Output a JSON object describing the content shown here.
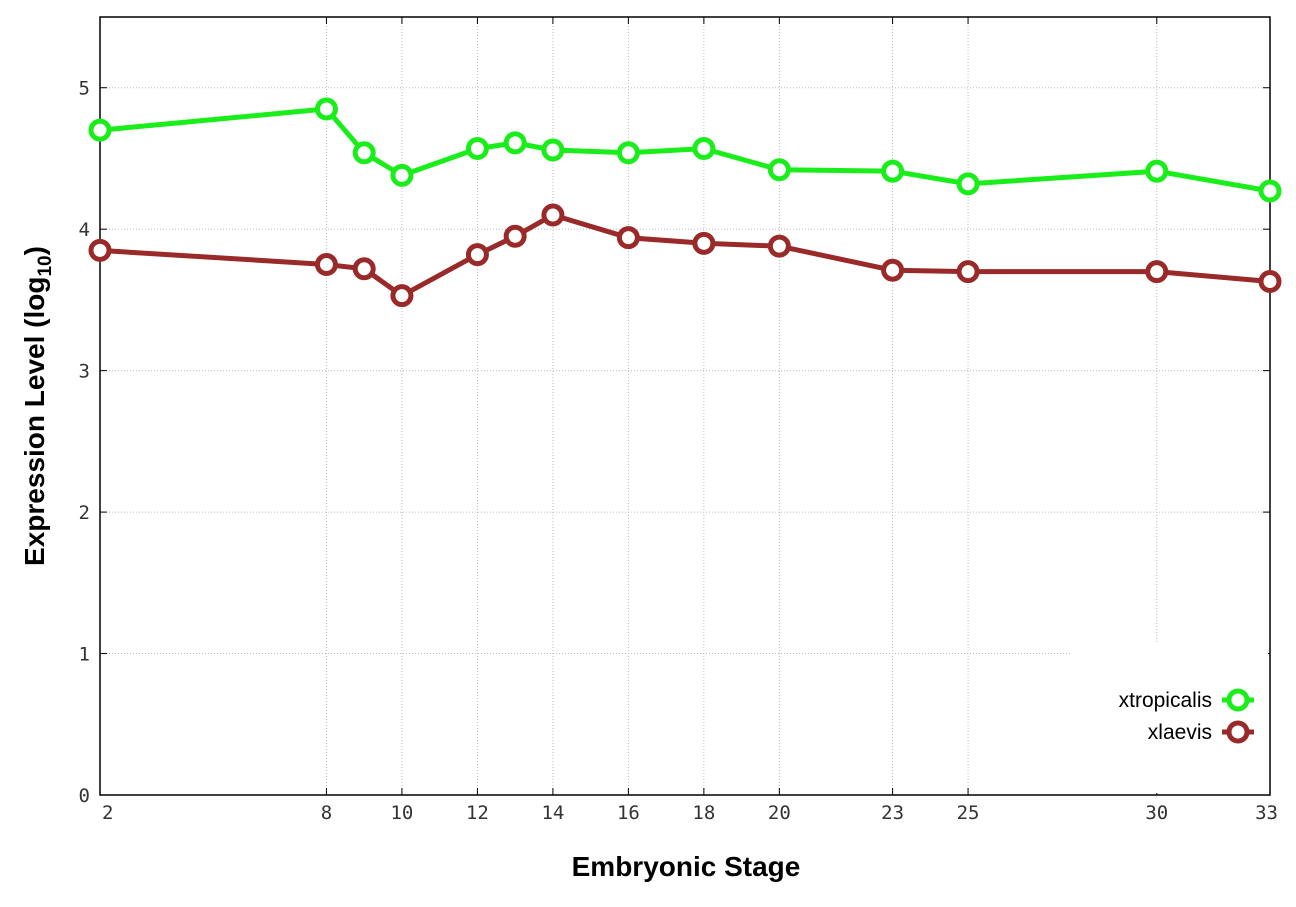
{
  "chart_data": {
    "type": "line",
    "title": "",
    "xlabel": "Embryonic Stage",
    "ylabel": {
      "main": "Expression Level (log",
      "sub": "10",
      "close": ")"
    },
    "x": [
      2,
      8,
      9,
      10,
      12,
      13,
      14,
      16,
      18,
      20,
      23,
      25,
      30,
      33
    ],
    "x_ticks": [
      "2",
      "8",
      "10",
      "12",
      "14",
      "16",
      "18",
      "20",
      "23",
      "25",
      "30",
      "33"
    ],
    "y_ticks": [
      "0",
      "1",
      "2",
      "3",
      "4",
      "5"
    ],
    "xlim": [
      2,
      33
    ],
    "ylim": [
      0,
      5.5
    ],
    "grid": true,
    "legend_position": "bottom-right",
    "series": [
      {
        "name": "xtropicalis",
        "color": "#1aee1a",
        "values": [
          4.7,
          4.85,
          4.54,
          4.38,
          4.57,
          4.61,
          4.56,
          4.54,
          4.57,
          4.42,
          4.41,
          4.32,
          4.41,
          4.27
        ]
      },
      {
        "name": "xlaevis",
        "color": "#9a2a2a",
        "values": [
          3.85,
          3.75,
          3.72,
          3.53,
          3.82,
          3.95,
          4.1,
          3.94,
          3.9,
          3.88,
          3.71,
          3.7,
          3.7,
          3.63
        ]
      }
    ]
  }
}
